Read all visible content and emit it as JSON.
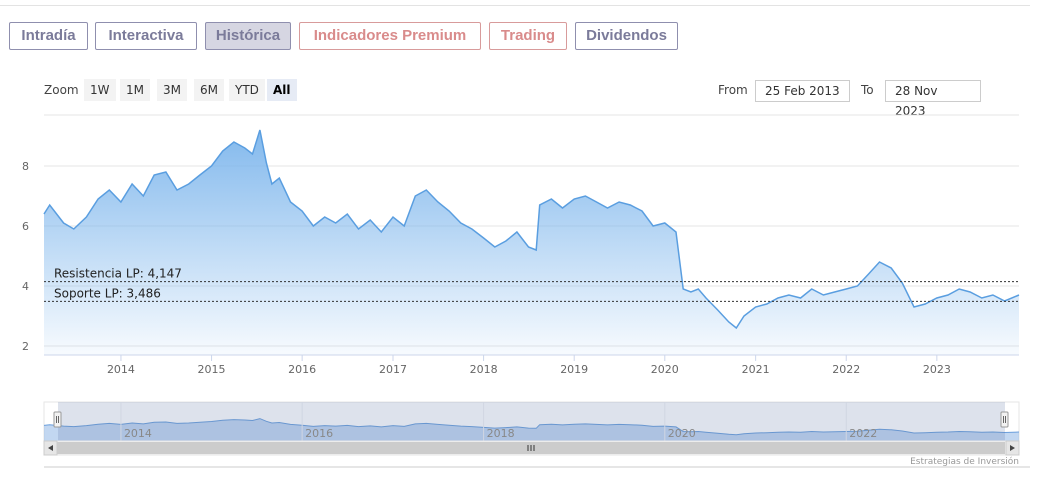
{
  "tabs": [
    {
      "label": "Intradía",
      "style": "normal"
    },
    {
      "label": "Interactiva",
      "style": "normal"
    },
    {
      "label": "Histórica",
      "style": "active"
    },
    {
      "label": "Indicadores Premium",
      "style": "premium"
    },
    {
      "label": "Trading",
      "style": "premium"
    },
    {
      "label": "Dividendos",
      "style": "normal"
    }
  ],
  "zoom": {
    "label": "Zoom",
    "buttons": [
      "1W",
      "1M",
      "3M",
      "6M",
      "YTD",
      "All"
    ],
    "selected": "All"
  },
  "range": {
    "from_label": "From",
    "from_value": "25 Feb 2013",
    "to_label": "To",
    "to_value": "28 Nov 2023"
  },
  "credits": "Estrategias de Inversión",
  "colors": {
    "series": "#7cb5ec",
    "series_line": "#5a9ee0",
    "navigator": "#8fb6e6",
    "tab_border": "#8f8fae",
    "tab_premium": "#d98b8b"
  },
  "chart_data": {
    "type": "area",
    "title": "",
    "xlabel": "",
    "ylabel": "",
    "x_range": [
      "2013-02-25",
      "2023-11-28"
    ],
    "ylim": [
      1.7,
      9.7
    ],
    "yticks": [
      2,
      4,
      6,
      8
    ],
    "xticks": [
      "2014",
      "2015",
      "2016",
      "2017",
      "2018",
      "2019",
      "2020",
      "2021",
      "2022",
      "2023"
    ],
    "grid": true,
    "legend": "none",
    "series": [
      {
        "x": [
          "2013-02-25",
          "2013-03-20",
          "2013-05-15",
          "2013-06-25",
          "2013-08-15",
          "2013-10-01",
          "2013-11-15",
          "2014-01-01",
          "2014-02-15",
          "2014-04-01",
          "2014-05-15",
          "2014-07-01",
          "2014-08-15",
          "2014-10-01",
          "2014-11-15",
          "2015-01-01",
          "2015-02-15",
          "2015-04-01",
          "2015-05-15",
          "2015-06-15",
          "2015-07-15",
          "2015-08-10",
          "2015-09-01",
          "2015-10-01",
          "2015-11-15",
          "2016-01-01",
          "2016-02-15",
          "2016-04-01",
          "2016-05-15",
          "2016-07-01",
          "2016-08-15",
          "2016-10-01",
          "2016-11-15",
          "2017-01-01",
          "2017-02-15",
          "2017-04-01",
          "2017-05-15",
          "2017-07-01",
          "2017-08-15",
          "2017-10-01",
          "2017-11-15",
          "2018-01-01",
          "2018-02-15",
          "2018-04-01",
          "2018-05-15",
          "2018-07-01",
          "2018-08-01",
          "2018-08-15",
          "2018-10-01",
          "2018-11-15",
          "2019-01-01",
          "2019-02-15",
          "2019-04-01",
          "2019-05-15",
          "2019-07-01",
          "2019-08-15",
          "2019-10-01",
          "2019-11-15",
          "2020-01-01",
          "2020-02-15",
          "2020-03-15",
          "2020-04-15",
          "2020-05-15",
          "2020-06-15",
          "2020-08-01",
          "2020-09-15",
          "2020-10-15",
          "2020-11-15",
          "2021-01-01",
          "2021-02-15",
          "2021-04-01",
          "2021-05-15",
          "2021-07-01",
          "2021-08-15",
          "2021-10-01",
          "2021-11-15",
          "2022-01-01",
          "2022-02-15",
          "2022-04-01",
          "2022-05-15",
          "2022-07-01",
          "2022-08-15",
          "2022-10-01",
          "2022-11-15",
          "2023-01-01",
          "2023-02-15",
          "2023-04-01",
          "2023-05-15",
          "2023-07-01",
          "2023-08-15",
          "2023-10-01",
          "2023-11-28"
        ],
        "y": [
          6.4,
          6.7,
          6.1,
          5.9,
          6.3,
          6.9,
          7.2,
          6.8,
          7.4,
          7.0,
          7.7,
          7.8,
          7.2,
          7.4,
          7.7,
          8.0,
          8.5,
          8.8,
          8.6,
          8.4,
          9.2,
          8.1,
          7.4,
          7.6,
          6.8,
          6.5,
          6.0,
          6.3,
          6.1,
          6.4,
          5.9,
          6.2,
          5.8,
          6.3,
          6.0,
          7.0,
          7.2,
          6.8,
          6.5,
          6.1,
          5.9,
          5.6,
          5.3,
          5.5,
          5.8,
          5.3,
          5.2,
          6.7,
          6.9,
          6.6,
          6.9,
          7.0,
          6.8,
          6.6,
          6.8,
          6.7,
          6.5,
          6.0,
          6.1,
          5.8,
          3.9,
          3.8,
          3.9,
          3.6,
          3.2,
          2.8,
          2.6,
          3.0,
          3.3,
          3.4,
          3.6,
          3.7,
          3.6,
          3.9,
          3.7,
          3.8,
          3.9,
          4.0,
          4.4,
          4.8,
          4.6,
          4.1,
          3.3,
          3.4,
          3.6,
          3.7,
          3.9,
          3.8,
          3.6,
          3.7,
          3.5,
          3.7
        ]
      }
    ],
    "plot_lines": [
      {
        "label": "Resistencia LP: 4,147",
        "value": 4.147
      },
      {
        "label": "Soporte LP: 3,486",
        "value": 3.486
      }
    ],
    "navigator": {
      "xticks": [
        "2014",
        "2016",
        "2018",
        "2020",
        "2022"
      ]
    }
  }
}
